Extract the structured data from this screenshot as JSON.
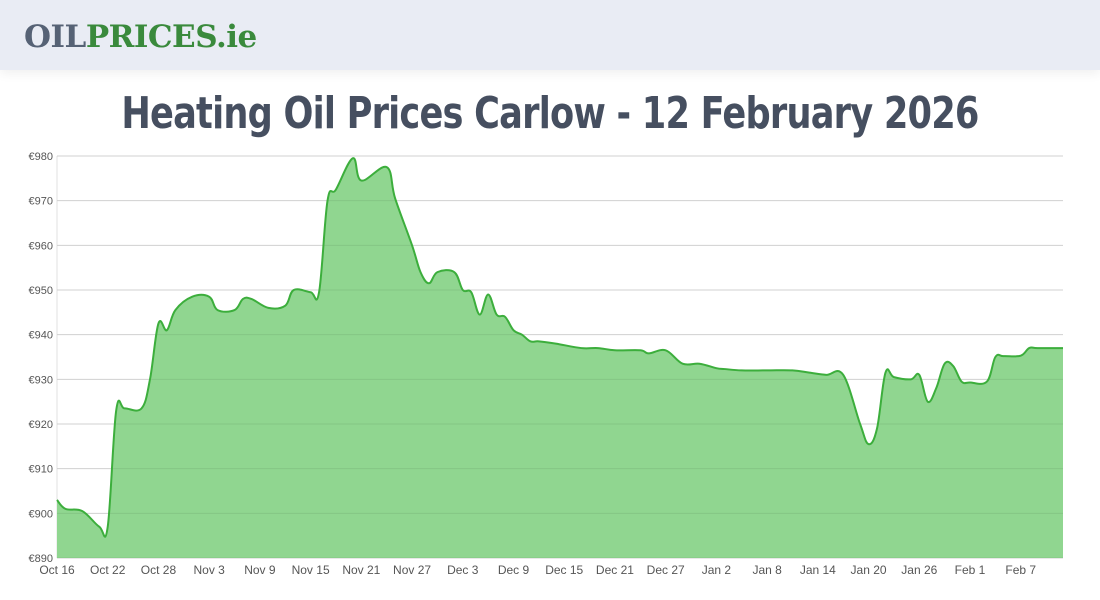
{
  "header": {
    "logo_part1": "OIL",
    "logo_part2": "PRICES.ie",
    "logo_colors": {
      "oil": "#566275",
      "prices": "#3a8a3c"
    }
  },
  "page": {
    "title": "Heating Oil Prices Carlow - 12 February 2026"
  },
  "chart_data": {
    "type": "area",
    "title": "Heating Oil Prices Carlow - 12 February 2026",
    "xlabel": "",
    "ylabel": "",
    "ylim": [
      890,
      980
    ],
    "grid": true,
    "legend": "none",
    "colors": {
      "line": "#3cae3c",
      "fill": "#90d690",
      "grid": "#e0e0e0"
    },
    "y_ticks": [
      "€980",
      "€970",
      "€960",
      "€950",
      "€940",
      "€930",
      "€920",
      "€910",
      "€900",
      "€890"
    ],
    "x_ticks": [
      "Oct 16",
      "Oct 22",
      "Oct 28",
      "Nov 3",
      "Nov 9",
      "Nov 15",
      "Nov 21",
      "Nov 27",
      "Dec 3",
      "Dec 9",
      "Dec 15",
      "Dec 21",
      "Dec 27",
      "Jan 2",
      "Jan 8",
      "Jan 14",
      "Jan 20",
      "Jan 26",
      "Feb 1",
      "Feb 7"
    ],
    "x": [
      "Oct 16",
      "Oct 17",
      "Oct 19",
      "Oct 21",
      "Oct 22",
      "Oct 23",
      "Oct 24",
      "Oct 26",
      "Oct 27",
      "Oct 28",
      "Oct 29",
      "Oct 30",
      "Nov 1",
      "Nov 3",
      "Nov 4",
      "Nov 6",
      "Nov 7",
      "Nov 8",
      "Nov 10",
      "Nov 12",
      "Nov 13",
      "Nov 15",
      "Nov 16",
      "Nov 17",
      "Nov 18",
      "Nov 20",
      "Nov 21",
      "Nov 24",
      "Nov 25",
      "Nov 27",
      "Nov 28",
      "Nov 29",
      "Nov 30",
      "Dec 2",
      "Dec 3",
      "Dec 4",
      "Dec 5",
      "Dec 6",
      "Dec 7",
      "Dec 8",
      "Dec 9",
      "Dec 10",
      "Dec 11",
      "Dec 12",
      "Dec 14",
      "Dec 17",
      "Dec 19",
      "Dec 21",
      "Dec 24",
      "Dec 25",
      "Dec 27",
      "Dec 29",
      "Dec 31",
      "Jan 2",
      "Jan 3",
      "Jan 5",
      "Jan 8",
      "Jan 11",
      "Jan 13",
      "Jan 15",
      "Jan 17",
      "Jan 19",
      "Jan 20",
      "Jan 21",
      "Jan 22",
      "Jan 23",
      "Jan 25",
      "Jan 26",
      "Jan 27",
      "Jan 28",
      "Jan 29",
      "Jan 30",
      "Jan 31",
      "Feb 1",
      "Feb 3",
      "Feb 4",
      "Feb 5",
      "Feb 7",
      "Feb 8",
      "Feb 9",
      "Feb 12"
    ],
    "values": [
      903,
      901,
      900.5,
      897,
      897,
      923,
      923.5,
      923.5,
      930,
      942.5,
      941,
      945.5,
      948.5,
      948.5,
      945.5,
      945.5,
      948,
      948,
      946,
      946.5,
      950,
      949.5,
      949.5,
      970,
      972.5,
      979.5,
      974.5,
      977.5,
      970.5,
      960,
      954,
      951.5,
      954,
      954,
      950,
      949.5,
      944.5,
      949,
      944.5,
      944,
      941,
      940,
      938.5,
      938.5,
      938,
      937,
      937,
      936.5,
      936.5,
      935.8,
      936.5,
      933.5,
      933.5,
      932.5,
      932.3,
      932,
      932,
      932,
      931.5,
      931,
      931,
      920,
      915.5,
      919,
      931.5,
      930.5,
      930,
      931,
      925,
      928,
      933.5,
      933,
      929.5,
      929.3,
      929.5,
      935,
      935.2,
      935.3,
      937,
      937,
      937
    ]
  }
}
